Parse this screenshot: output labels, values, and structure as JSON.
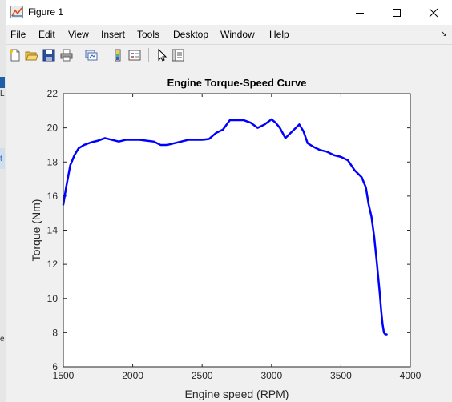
{
  "window": {
    "title": "Figure 1",
    "app_icon": "matlab-figure-icon",
    "controls": [
      "minimize-icon",
      "maximize-icon",
      "close-icon"
    ]
  },
  "menu": {
    "items": [
      "File",
      "Edit",
      "View",
      "Insert",
      "Tools",
      "Desktop",
      "Window",
      "Help"
    ]
  },
  "toolbar": {
    "buttons": [
      "new-figure-icon",
      "open-file-icon",
      "save-icon",
      "print-icon",
      "link-plot-icon",
      "insert-colorbar-icon",
      "insert-legend-icon",
      "edit-plot-icon",
      "property-inspector-icon"
    ]
  },
  "background_window_text": [
    "L",
    "t",
    "e"
  ],
  "chart_data": {
    "type": "line",
    "title": "Engine Torque-Speed Curve",
    "xlabel": "Engine speed (RPM)",
    "ylabel": "Torque (Nm)",
    "xlim": [
      1500,
      4000
    ],
    "ylim": [
      6,
      22
    ],
    "xticks": [
      1500,
      2000,
      2500,
      3000,
      3500,
      4000
    ],
    "yticks": [
      6,
      8,
      10,
      12,
      14,
      16,
      18,
      20,
      22
    ],
    "grid": false,
    "line_color": "#0000ff",
    "series": [
      {
        "x": [
          1500,
          1520,
          1550,
          1580,
          1610,
          1650,
          1700,
          1750,
          1800,
          1850,
          1900,
          1950,
          2000,
          2050,
          2100,
          2150,
          2200,
          2250,
          2300,
          2350,
          2400,
          2450,
          2500,
          2550,
          2600,
          2650,
          2700,
          2750,
          2800,
          2850,
          2900,
          2950,
          3000,
          3030,
          3060,
          3100,
          3150,
          3200,
          3230,
          3260,
          3300,
          3350,
          3400,
          3450,
          3500,
          3550,
          3600,
          3650,
          3680,
          3700,
          3720,
          3740,
          3760,
          3780,
          3790,
          3800,
          3810,
          3820,
          3830
        ],
        "y": [
          15.5,
          16.5,
          17.8,
          18.4,
          18.8,
          19.0,
          19.15,
          19.25,
          19.4,
          19.3,
          19.2,
          19.3,
          19.3,
          19.3,
          19.25,
          19.2,
          19.0,
          19.0,
          19.1,
          19.2,
          19.3,
          19.3,
          19.3,
          19.35,
          19.7,
          19.9,
          20.45,
          20.45,
          20.45,
          20.3,
          20.0,
          20.2,
          20.5,
          20.3,
          20.0,
          19.4,
          19.8,
          20.2,
          19.8,
          19.1,
          18.9,
          18.7,
          18.6,
          18.4,
          18.3,
          18.1,
          17.5,
          17.1,
          16.5,
          15.5,
          14.8,
          13.6,
          12.0,
          10.3,
          9.3,
          8.5,
          8.0,
          7.9,
          7.9
        ]
      }
    ]
  }
}
